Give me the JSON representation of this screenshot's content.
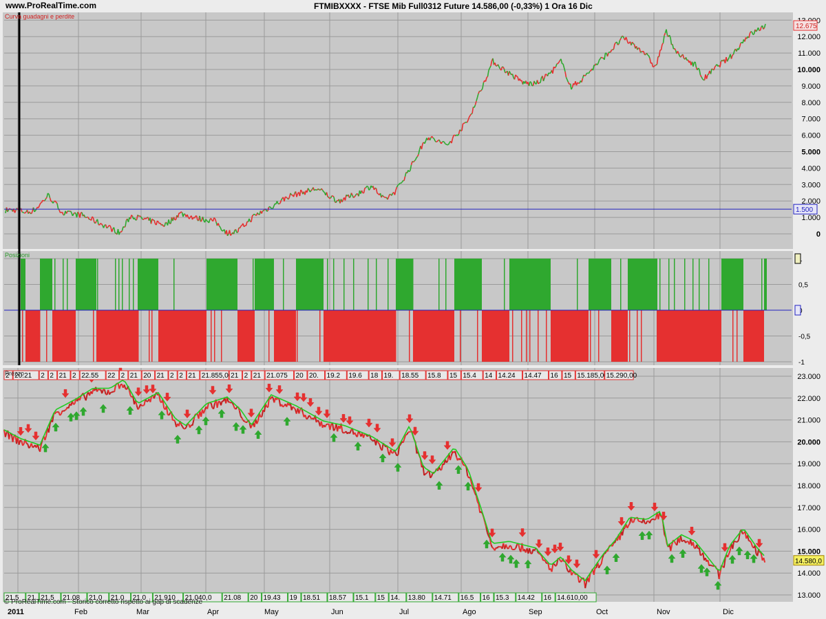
{
  "header": {
    "site": "www.ProRealTime.com",
    "title": "FTMIBXXXX - FTSE Mib Full0312 Future    14.586,00 (-0,33%)    1 Ora  16 Dic"
  },
  "colors": {
    "background": "#c8c8c8",
    "frame": "#ececec",
    "up": "#2fa82f",
    "down": "#e53030",
    "hline": "#2020c0",
    "ma_green": "#22cc22"
  },
  "months": [
    "2011",
    "Feb",
    "Mar",
    "Apr",
    "May",
    "Jun",
    "Jul",
    "Ago",
    "Sep",
    "Oct",
    "Nov",
    "Dic"
  ],
  "footer_note": "© ProRealTime.com - Storico corretto rispetto ai gap di scadenze",
  "panels": {
    "equity": {
      "label": "Curva guadagni e perdite",
      "last_value": "12.675",
      "hline_label": "1.500",
      "ticks": [
        "13.000",
        "12.000",
        "11.000",
        "10.000",
        "9.000",
        "8.000",
        "7.000",
        "6.000",
        "5.000",
        "4.000",
        "3.000",
        "2.000",
        "1.000",
        "0"
      ]
    },
    "positions": {
      "label": "Posizioni",
      "ticks": [
        "1",
        "0,5",
        "0",
        "-0,5",
        "-1"
      ]
    },
    "price": {
      "label": "Prezzo",
      "last_value": "14.580,0",
      "top_labels": [
        "2",
        "20.21",
        "2",
        "2",
        "21",
        "2",
        "22.55",
        "22",
        "2",
        "21",
        "20",
        "21",
        "2",
        "2",
        "21",
        "21.855,00",
        "21",
        "2",
        "21",
        "21.075",
        "20",
        "20.",
        "19.2",
        "19.6",
        "18",
        "19.",
        "18.55",
        "15.8",
        "15",
        "15.4",
        "14",
        "14.24",
        "14.47",
        "16",
        "15",
        "15.185,00",
        "15.290,00"
      ],
      "bottom_labels": [
        "21.5",
        "21",
        "21.5",
        "21.08",
        "21.0",
        "21.0",
        "21.0",
        "21.910",
        "21.040,0",
        "21.08",
        "20",
        "19.43",
        "19",
        "18.51",
        "18.57",
        "15.1",
        "15",
        "14.",
        "13.80",
        "14.71",
        "16.5",
        "16",
        "15.3",
        "14.42",
        "16",
        "14.610,00"
      ],
      "ticks": [
        "23.000",
        "22.000",
        "21.000",
        "20.000",
        "19.000",
        "18.000",
        "17.000",
        "16.000",
        "15.000",
        "14.000",
        "13.000"
      ]
    }
  },
  "chart_data": [
    {
      "type": "line",
      "name": "Curva guadagni e perdite",
      "ylim": [
        -500,
        13300
      ],
      "x": [
        "2011",
        "Feb",
        "Mar",
        "Apr",
        "May",
        "Jun",
        "Jul",
        "Ago",
        "Sep",
        "Oct",
        "Nov",
        "Dic",
        "16 Dic"
      ],
      "values": [
        1450,
        1300,
        500,
        900,
        1500,
        2100,
        2600,
        9800,
        9200,
        10800,
        11100,
        10800,
        12675
      ],
      "reference_line": 1500
    },
    {
      "type": "bar",
      "name": "Posizioni",
      "ylim": [
        -1,
        1
      ],
      "values_description_free": true,
      "positions": [
        1,
        -1,
        1,
        -1,
        1,
        -1,
        1,
        -1,
        1,
        -1,
        1,
        -1,
        1,
        -1,
        1,
        -1,
        1,
        -1,
        1,
        -1,
        1,
        -1,
        1,
        -1,
        1
      ]
    },
    {
      "type": "line",
      "name": "Prezzo",
      "ylim": [
        12800,
        23200
      ],
      "x": [
        "2011",
        "Feb",
        "Mar",
        "Apr",
        "May",
        "Jun",
        "Jul",
        "Ago",
        "Sep",
        "Oct",
        "Nov",
        "Dic",
        "16 Dic"
      ],
      "values": [
        20400,
        21500,
        22200,
        21000,
        21800,
        20600,
        20300,
        18600,
        14600,
        14700,
        16200,
        15300,
        14580
      ]
    }
  ]
}
